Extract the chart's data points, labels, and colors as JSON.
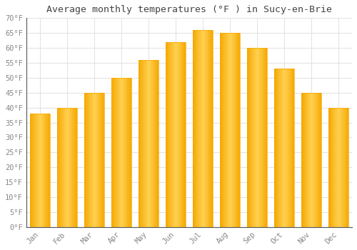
{
  "title": "Average monthly temperatures (°F ) in Sucy-en-Brie",
  "months": [
    "Jan",
    "Feb",
    "Mar",
    "Apr",
    "May",
    "Jun",
    "Jul",
    "Aug",
    "Sep",
    "Oct",
    "Nov",
    "Dec"
  ],
  "values": [
    38,
    40,
    45,
    50,
    56,
    62,
    66,
    65,
    60,
    53,
    45,
    40
  ],
  "bar_color_center": "#FFD050",
  "bar_color_edge": "#F5A800",
  "background_color": "#FFFFFF",
  "grid_color": "#DDDDDD",
  "text_color": "#888888",
  "axis_color": "#555555",
  "ylim": [
    0,
    70
  ],
  "yticks": [
    0,
    5,
    10,
    15,
    20,
    25,
    30,
    35,
    40,
    45,
    50,
    55,
    60,
    65,
    70
  ],
  "title_fontsize": 9.5,
  "tick_fontsize": 7.5,
  "bar_width": 0.75
}
